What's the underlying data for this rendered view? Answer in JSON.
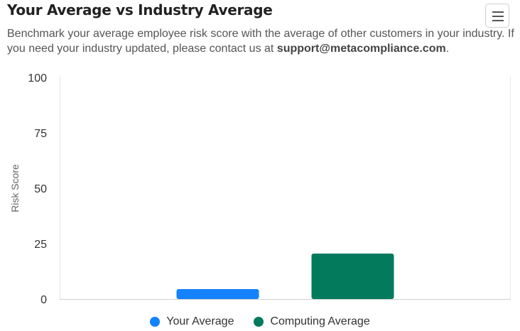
{
  "header": {
    "title": "Your Average vs Industry Average",
    "description_prefix": "Benchmark your average employee risk score with the average of other customers in your industry. If you need your industry updated, please contact us at ",
    "description_email": "support@metacompliance.com",
    "description_suffix": ".",
    "menu_icon": "hamburger-menu-icon"
  },
  "chart_data": {
    "type": "bar",
    "title": "",
    "xlabel": "",
    "ylabel": "Risk Score",
    "ylim": [
      0,
      100
    ],
    "yticks": [
      "0",
      "25",
      "50",
      "75",
      "100"
    ],
    "grid": false,
    "legend_position": "bottom-center",
    "series": [
      {
        "name": "Your Average",
        "value": 4.5,
        "color": "#1482fa"
      },
      {
        "name": "Computing Average",
        "value": 20.5,
        "color": "#037a5c"
      }
    ]
  }
}
